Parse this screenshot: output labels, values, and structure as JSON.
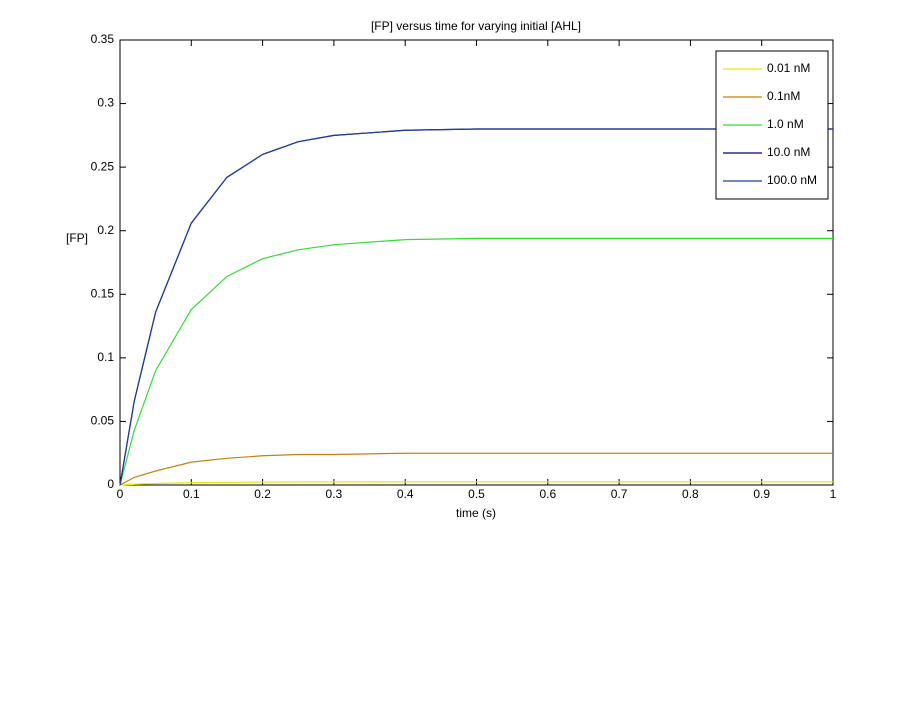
{
  "chart_data": {
    "type": "line",
    "title": "[FP] versus time for varying initial [AHL]",
    "xlabel": "time (s)",
    "ylabel": "[FP]",
    "x": [
      0,
      0.02,
      0.05,
      0.1,
      0.15,
      0.2,
      0.25,
      0.3,
      0.4,
      0.5,
      0.6,
      0.7,
      0.8,
      0.9,
      1
    ],
    "series": [
      {
        "name": "0.01 nM",
        "color": "#e8e800",
        "values": [
          0,
          0.0006,
          0.0012,
          0.0018,
          0.0021,
          0.0023,
          0.0024,
          0.0024,
          0.0025,
          0.0025,
          0.0025,
          0.0025,
          0.0025,
          0.0025,
          0.0025
        ]
      },
      {
        "name": "0.1nM",
        "color": "#c8800f",
        "values": [
          0,
          0.006,
          0.011,
          0.018,
          0.021,
          0.023,
          0.024,
          0.024,
          0.025,
          0.025,
          0.025,
          0.025,
          0.025,
          0.025,
          0.025
        ]
      },
      {
        "name": "1.0 nM",
        "color": "#33dd33",
        "values": [
          0,
          0.043,
          0.09,
          0.138,
          0.164,
          0.178,
          0.185,
          0.189,
          0.193,
          0.194,
          0.194,
          0.194,
          0.194,
          0.194,
          0.194
        ]
      },
      {
        "name": "10.0 nM",
        "color": "#00008b",
        "values": [
          0,
          0.066,
          0.136,
          0.206,
          0.242,
          0.26,
          0.27,
          0.275,
          0.279,
          0.28,
          0.28,
          0.28,
          0.28,
          0.28,
          0.28
        ]
      },
      {
        "name": "100.0 nM",
        "color": "#1f3f9f",
        "values": [
          0,
          0.066,
          0.136,
          0.206,
          0.242,
          0.26,
          0.27,
          0.275,
          0.279,
          0.28,
          0.28,
          0.28,
          0.28,
          0.28,
          0.28
        ]
      }
    ],
    "xlim": [
      0,
      1
    ],
    "xticks": [
      0,
      0.1,
      0.2,
      0.3,
      0.4,
      0.5,
      0.6,
      0.7,
      0.8,
      0.9,
      1
    ],
    "ylim": [
      0,
      0.35
    ],
    "yticks": [
      0,
      0.05,
      0.1,
      0.15,
      0.2,
      0.25,
      0.3,
      0.35
    ],
    "legend": "upper right"
  }
}
